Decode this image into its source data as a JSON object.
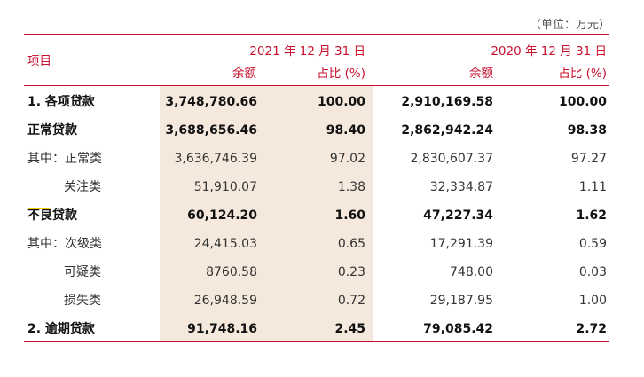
{
  "unit": "（单位：万元）",
  "header": {
    "item": "项目",
    "year2021": "2021 年 12 月 31 日",
    "year2020": "2020 年 12 月 31 日",
    "balance": "余额",
    "ratio": "占比 (%)"
  },
  "rows": [
    {
      "label": "1. 各项贷款",
      "b21": "3,748,780.66",
      "r21": "100.00",
      "b20": "2,910,169.58",
      "r20": "100.00"
    },
    {
      "label": "正常贷款",
      "b21": "3,688,656.46",
      "r21": "98.40",
      "b20": "2,862,942.24",
      "r20": "98.38"
    },
    {
      "label": "其中：正常类",
      "b21": "3,636,746.39",
      "r21": "97.02",
      "b20": "2,830,607.37",
      "r20": "97.27"
    },
    {
      "label": "关注类",
      "b21": "51,910.07",
      "r21": "1.38",
      "b20": "32,334.87",
      "r20": "1.11"
    },
    {
      "label": "不良贷款",
      "b21": "60,124.20",
      "r21": "1.60",
      "b20": "47,227.34",
      "r20": "1.62"
    },
    {
      "label": "其中：次级类",
      "b21": "24,415.03",
      "r21": "0.65",
      "b20": "17,291.39",
      "r20": "0.59"
    },
    {
      "label": "可疑类",
      "b21": "8760.58",
      "r21": "0.23",
      "b20": "748.00",
      "r20": "0.03"
    },
    {
      "label": "损失类",
      "b21": "26,948.59",
      "r21": "0.72",
      "b20": "29,187.95",
      "r20": "1.00"
    },
    {
      "label": "2. 逾期贷款",
      "b21": "91,748.16",
      "r21": "2.45",
      "b20": "79,085.42",
      "r20": "2.72"
    }
  ]
}
